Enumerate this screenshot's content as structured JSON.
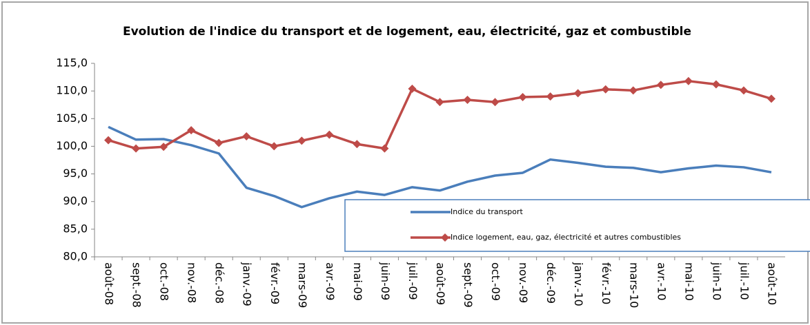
{
  "chart_data": {
    "type": "line",
    "title": "Evolution de l'indice du transport et de logement, eau, électricité, gaz et combustible",
    "categories": [
      "août-08",
      "sept.-08",
      "oct.-08",
      "nov.-08",
      "déc.-08",
      "janv.-09",
      "févr.-09",
      "mars-09",
      "avr.-09",
      "mai-09",
      "juin-09",
      "juil.-09",
      "août-09",
      "sept.-09",
      "oct.-09",
      "nov.-09",
      "déc.-09",
      "janv.-10",
      "févr.-10",
      "mars-10",
      "avr.-10",
      "mai-10",
      "juin-10",
      "juil.-10",
      "août-10"
    ],
    "series": [
      {
        "name": "Indice du transport",
        "color": "#4a7ebb",
        "marker": false,
        "values": [
          103.5,
          101.2,
          101.3,
          100.2,
          98.7,
          92.5,
          91.0,
          89.0,
          90.6,
          91.8,
          91.2,
          92.6,
          92.0,
          93.6,
          94.7,
          95.2,
          97.6,
          97.0,
          96.3,
          96.1,
          95.3,
          96.0,
          96.5,
          96.2,
          95.3
        ]
      },
      {
        "name": "Indice logement, eau, gaz, électricité et autres combustibles",
        "color": "#be4b48",
        "marker": true,
        "values": [
          101.1,
          99.6,
          99.9,
          102.9,
          100.6,
          101.8,
          100.0,
          101.0,
          102.1,
          100.4,
          99.6,
          110.4,
          108.0,
          108.4,
          108.0,
          108.9,
          109.0,
          109.6,
          110.3,
          110.1,
          111.1,
          111.8,
          111.2,
          110.1,
          108.6
        ]
      }
    ],
    "ylim": [
      80,
      115
    ],
    "yticks": [
      {
        "value": 80,
        "label": "80,0"
      },
      {
        "value": 85,
        "label": "85,0"
      },
      {
        "value": 90,
        "label": "90,0"
      },
      {
        "value": 95,
        "label": "95,0"
      },
      {
        "value": 100,
        "label": "100,0"
      },
      {
        "value": 105,
        "label": "105,0"
      },
      {
        "value": 110,
        "label": "110,0"
      },
      {
        "value": 115,
        "label": "115,0"
      }
    ],
    "legend": "lower right",
    "grid": false
  }
}
